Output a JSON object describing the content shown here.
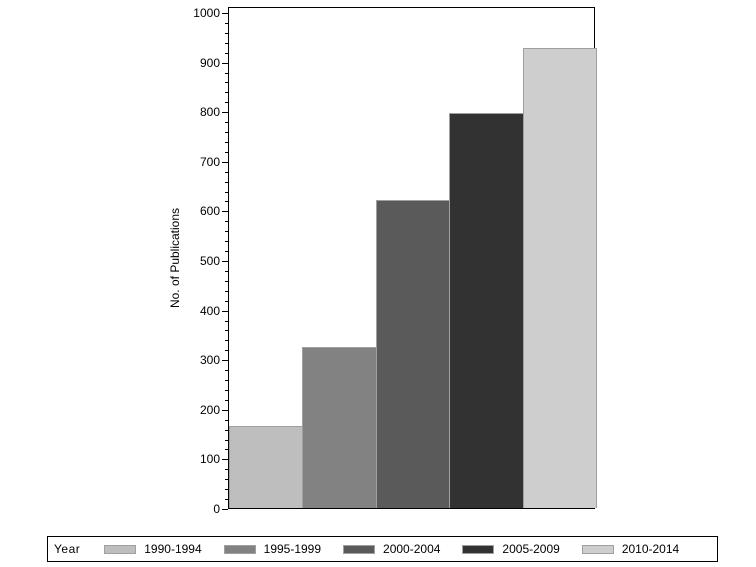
{
  "chart_data": {
    "type": "bar",
    "title": "",
    "xlabel": "",
    "ylabel": "No. of Publications",
    "ylim": [
      0,
      1000
    ],
    "yticks": [
      0,
      100,
      200,
      300,
      400,
      500,
      600,
      700,
      800,
      900,
      1000
    ],
    "grid": false,
    "legend_position": "bottom",
    "legend_title": "Year",
    "categories": [
      "1990-1994",
      "1995-1999",
      "2000-2004",
      "2005-2009",
      "2010-2014"
    ],
    "values": [
      165,
      325,
      621,
      796,
      927
    ],
    "colors": [
      "#bebebe",
      "#828282",
      "#5a5a5a",
      "#323232",
      "#cecece"
    ]
  },
  "legend": {
    "title": "Year",
    "items": [
      {
        "label": "1990-1994",
        "color": "#bebebe"
      },
      {
        "label": "1995-1999",
        "color": "#828282"
      },
      {
        "label": "2000-2004",
        "color": "#5a5a5a"
      },
      {
        "label": "2005-2009",
        "color": "#323232"
      },
      {
        "label": "2010-2014",
        "color": "#cecece"
      }
    ]
  }
}
